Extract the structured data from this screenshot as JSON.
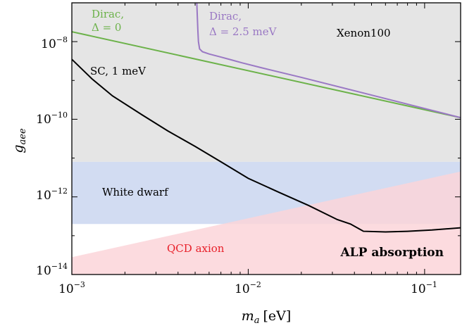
{
  "chart_data": {
    "type": "line",
    "xlabel_symbol": "m",
    "xlabel_sub": "a",
    "xlabel_unit": "[eV]",
    "ylabel_symbol": "g",
    "ylabel_sub": "aee",
    "xscale": "log",
    "yscale": "log",
    "xlim": [
      0.001,
      0.16
    ],
    "ylim": [
      1e-14,
      1e-07
    ],
    "x_ticks": [
      {
        "value": 0.001,
        "base": "10",
        "exp": "−3"
      },
      {
        "value": 0.01,
        "base": "10",
        "exp": "−2"
      },
      {
        "value": 0.1,
        "base": "10",
        "exp": "−1"
      }
    ],
    "y_ticks": [
      {
        "value": 1e-14,
        "base": "10",
        "exp": "−14"
      },
      {
        "value": 1e-12,
        "base": "10",
        "exp": "−12"
      },
      {
        "value": 1e-10,
        "base": "10",
        "exp": "−10"
      },
      {
        "value": 1e-08,
        "base": "10",
        "exp": "−8"
      }
    ],
    "regions": [
      {
        "name": "Xenon100",
        "color": "#e5e5e5",
        "ymin": 8e-12,
        "ymax": 1e-07
      },
      {
        "name": "White dwarf",
        "color": "#d2dcf2",
        "ymin": 2e-13,
        "ymax": 8e-12
      },
      {
        "name": "QCD axion",
        "color": "#fbd5d9",
        "label_color": "#e8202a",
        "lower": [
          [
            0.001,
            2.8e-14
          ],
          [
            0.16,
            2e-13
          ]
        ],
        "upper": [
          [
            0.001,
            2.8e-14
          ],
          [
            0.16,
            4.5e-12
          ]
        ]
      }
    ],
    "series": [
      {
        "color": "#6cb24a",
        "label_line1": "Dirac,",
        "label_line2": "Δ = 0",
        "x": [
          0.001,
          0.16
        ],
        "y": [
          1.8e-08,
          1.1e-10
        ]
      },
      {
        "color": "#9a78c4",
        "label_line1": "Dirac,",
        "label_line2": "Δ = 2.5 meV",
        "x": [
          0.00511,
          0.00514,
          0.00518,
          0.00522,
          0.0053,
          0.0055,
          0.006,
          0.007,
          0.008,
          0.0092,
          0.012,
          0.02,
          0.05,
          0.16
        ],
        "y": [
          1e-07,
          5e-08,
          2e-08,
          1e-08,
          6.5e-09,
          5.5e-09,
          4.8e-09,
          4e-09,
          3.4e-09,
          2.85e-09,
          2.1e-09,
          1.2e-09,
          4.2e-10,
          1.1e-10
        ]
      },
      {
        "color": "#000000",
        "label_line1": "SC,  1 meV",
        "label_line2": "",
        "x": [
          0.001,
          0.0013,
          0.0017,
          0.0025,
          0.0035,
          0.005,
          0.007,
          0.01,
          0.015,
          0.022,
          0.032,
          0.038,
          0.045,
          0.06,
          0.08,
          0.11,
          0.16
        ],
        "y": [
          3.5e-09,
          1.1e-09,
          4e-10,
          1.3e-10,
          5e-11,
          2e-11,
          8e-12,
          3e-12,
          1.3e-12,
          6e-13,
          2.6e-13,
          2e-13,
          1.3e-13,
          1.25e-13,
          1.3e-13,
          1.4e-13,
          1.6e-13
        ]
      }
    ],
    "annotations": [
      {
        "text": "ALP absorption"
      }
    ]
  }
}
